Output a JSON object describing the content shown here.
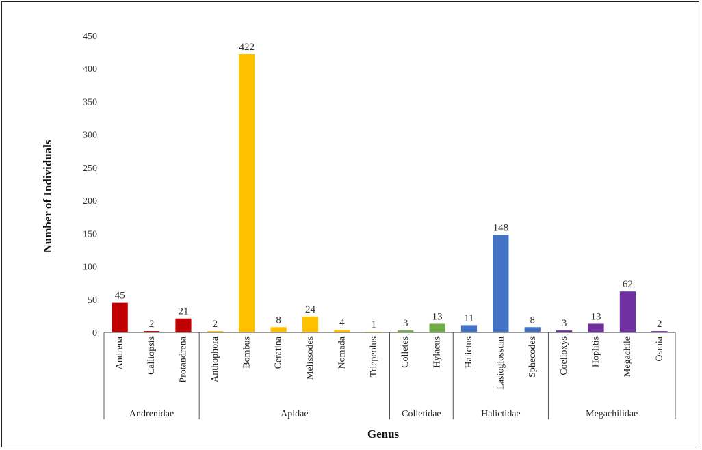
{
  "chart_data": {
    "type": "bar",
    "title": "",
    "xlabel": "Genus",
    "ylabel": "Number of Individuals",
    "ylim": [
      0,
      450
    ],
    "yticks": [
      0,
      50,
      100,
      150,
      200,
      250,
      300,
      350,
      400,
      450
    ],
    "grid": false,
    "legend": "none",
    "groups": [
      {
        "name": "Andrenidae",
        "color": "#C00000",
        "categories": [
          "Andrena",
          "Calliopsis",
          "Protandrena"
        ],
        "values": [
          45,
          2,
          21
        ]
      },
      {
        "name": "Apidae",
        "color": "#FFC000",
        "categories": [
          "Anthophora",
          "Bombus",
          "Ceratina",
          "Melissodes",
          "Nomada",
          "Triepeolus"
        ],
        "values": [
          2,
          422,
          8,
          24,
          4,
          1
        ]
      },
      {
        "name": "Colletidae",
        "color": "#70AD47",
        "categories": [
          "Colletes",
          "Hylaeus"
        ],
        "values": [
          3,
          13
        ]
      },
      {
        "name": "Halictidae",
        "color": "#4472C4",
        "categories": [
          "Halictus",
          "Lasioglossum",
          "Sphecodes"
        ],
        "values": [
          11,
          148,
          8
        ]
      },
      {
        "name": "Megachilidae",
        "color": "#7030A0",
        "categories": [
          "Coelioxys",
          "Hoplitis",
          "Megachile",
          "Osmia"
        ],
        "values": [
          3,
          13,
          62,
          2
        ]
      }
    ]
  }
}
